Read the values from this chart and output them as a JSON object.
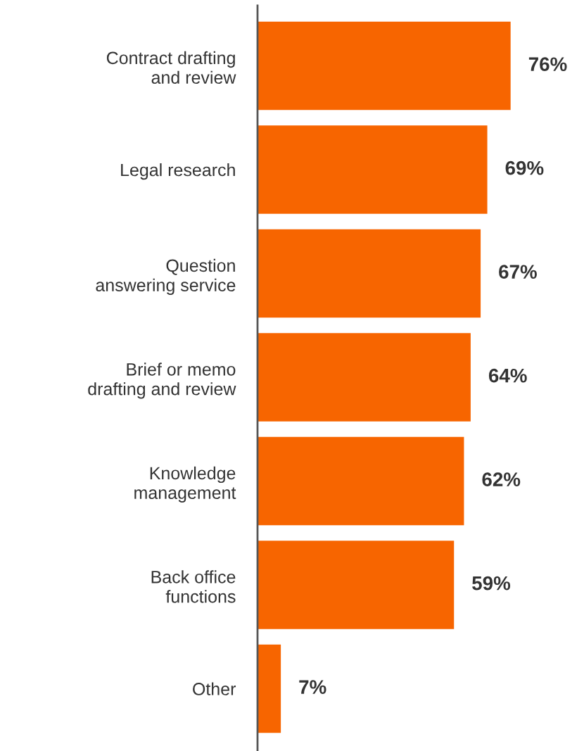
{
  "chart_data": {
    "type": "bar",
    "orientation": "horizontal",
    "categories": [
      "Contract drafting\nand review",
      "Legal research",
      "Question\nanswering service",
      "Brief or memo\ndrafting and review",
      "Knowledge\nmanagement",
      "Back office\nfunctions",
      "Other"
    ],
    "values": [
      76,
      69,
      67,
      64,
      62,
      59,
      7
    ],
    "value_labels": [
      "76%",
      "69%",
      "67%",
      "64%",
      "62%",
      "59%",
      "7%"
    ],
    "color": "#f76500",
    "tick_labels": "y",
    "grid": false,
    "legend": false
  }
}
